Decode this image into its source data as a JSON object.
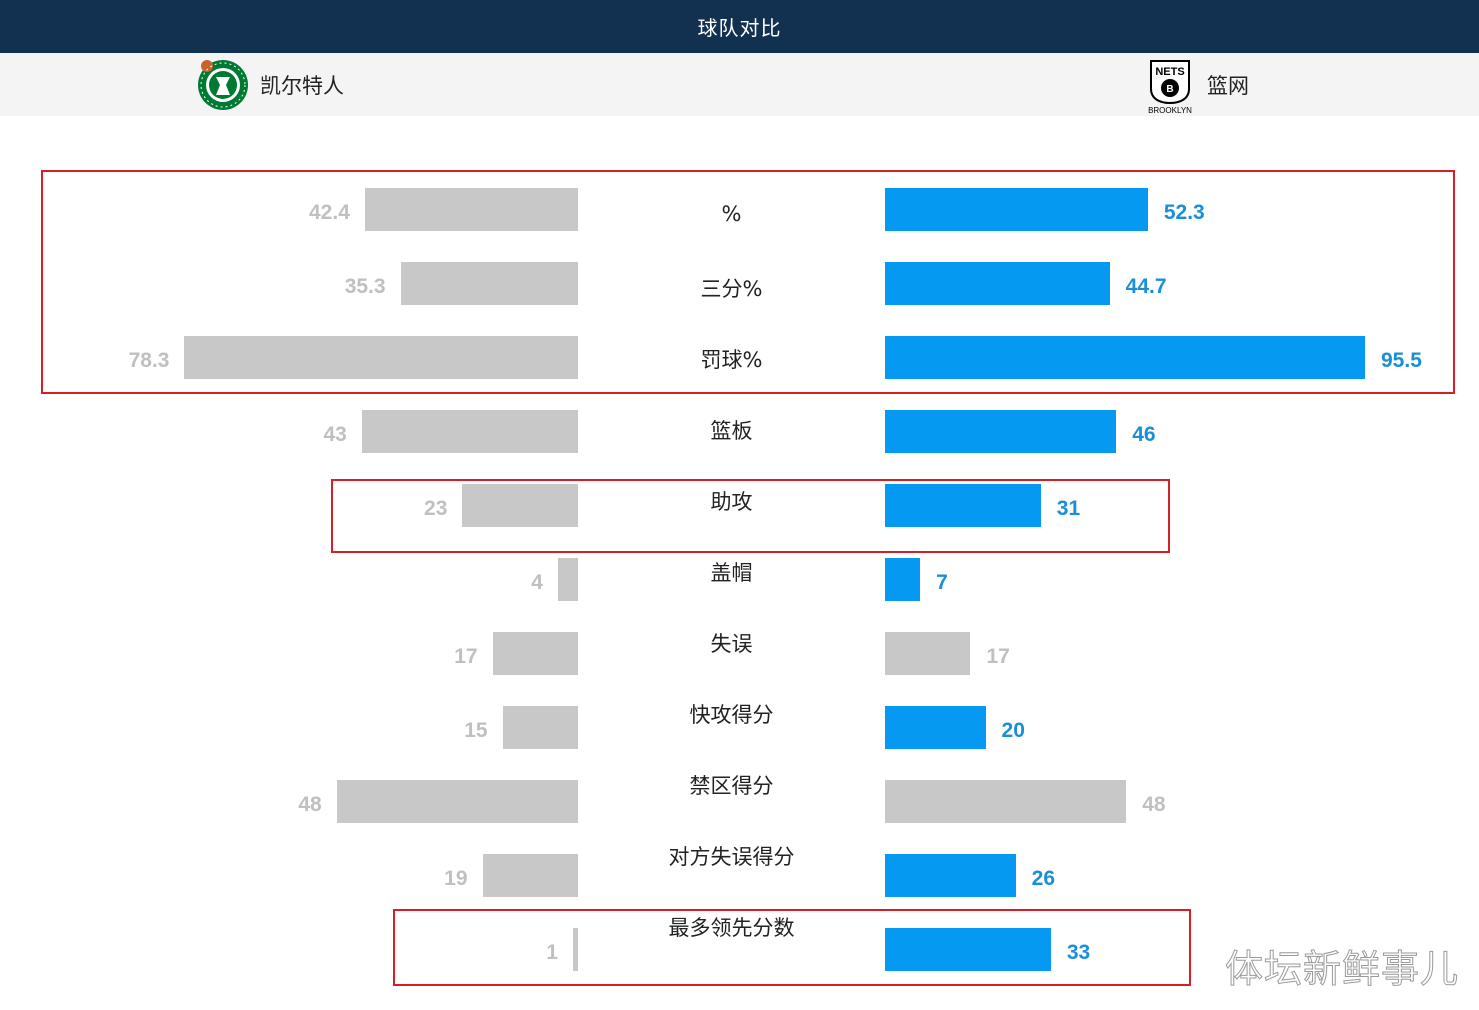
{
  "header": {
    "title": "球队对比"
  },
  "teams": {
    "home": {
      "name": "凯尔特人",
      "logo_text": "BOSTON CELTICS",
      "logo_color": "#007a33"
    },
    "away": {
      "name": "篮网",
      "logo_text": "NETS",
      "logo_subtext": "BROOKLYN",
      "logo_color": "#000000"
    }
  },
  "colors": {
    "neutral": "#c8c8c8",
    "accent": "#0599f2",
    "neutral_text": "#c0c0c0",
    "accent_text": "#1a8fd8"
  },
  "chart_data": {
    "type": "bar",
    "categories": [
      "%",
      "三分%",
      "罚球%",
      "篮板",
      "助攻",
      "盖帽",
      "失误",
      "快攻得分",
      "禁区得分",
      "对方失误得分",
      "最多领先分数"
    ],
    "series": [
      {
        "name": "凯尔特人",
        "values": [
          42.4,
          35.3,
          78.3,
          43,
          23,
          4,
          17,
          15,
          48,
          19,
          1
        ]
      },
      {
        "name": "篮网",
        "values": [
          52.3,
          44.7,
          95.5,
          46,
          31,
          7,
          17,
          20,
          48,
          26,
          33
        ]
      }
    ],
    "value_labels": {
      "home": [
        "42.4",
        "35.3",
        "78.3",
        "43",
        "23",
        "4",
        "17",
        "15",
        "48",
        "19",
        "1"
      ],
      "away": [
        "52.3",
        "44.7",
        "95.5",
        "46",
        "31",
        "7",
        "17",
        "20",
        "48",
        "26",
        "33"
      ]
    },
    "highlight_groups": [
      [
        0,
        1,
        2
      ],
      [
        4
      ],
      [
        10
      ]
    ]
  },
  "watermark": "体坛新鲜事儿"
}
